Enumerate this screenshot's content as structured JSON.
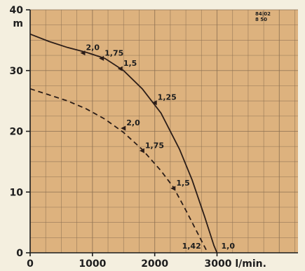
{
  "chart_data": {
    "type": "line",
    "ylabel": "m",
    "x_unit_label": "l/min.",
    "xlim": [
      0,
      4300
    ],
    "ylim": [
      0,
      40
    ],
    "x_ticks": [
      0,
      1000,
      2000,
      3000
    ],
    "x_tick_labels": [
      "0",
      "1000",
      "2000",
      "3000 l/min."
    ],
    "y_ticks": [
      0,
      10,
      20,
      30,
      40
    ],
    "y_tick_labels": [
      "0",
      "10",
      "20",
      "30",
      "40"
    ],
    "grid": true,
    "code": [
      "84|02",
      "8 50"
    ],
    "series": [
      {
        "style": "solid",
        "color": "#2b1d18",
        "x": [
          0,
          300,
          600,
          900,
          1200,
          1500,
          1800,
          2100,
          2400,
          2600,
          2800,
          2950,
          3000
        ],
        "y": [
          36,
          34.8,
          33.8,
          33,
          32,
          30,
          27,
          23,
          17,
          12,
          6,
          1.2,
          0
        ],
        "markers": [
          {
            "x": 850,
            "y": 32.9,
            "label": "2,0"
          },
          {
            "x": 1150,
            "y": 32.0,
            "label": "1,75"
          },
          {
            "x": 1450,
            "y": 30.3,
            "label": "1,5"
          },
          {
            "x": 2000,
            "y": 24.7,
            "label": "1,25"
          },
          {
            "x": 3000,
            "y": 0,
            "label": "1,0"
          }
        ]
      },
      {
        "style": "dashed",
        "color": "#2b1d18",
        "x": [
          0,
          300,
          600,
          900,
          1200,
          1500,
          1800,
          2100,
          2300,
          2500,
          2700,
          2850
        ],
        "y": [
          27,
          26,
          25,
          23.7,
          22,
          19.8,
          17,
          13.5,
          10.8,
          7,
          3,
          0
        ],
        "markers": [
          {
            "x": 1500,
            "y": 20.5,
            "label": "2,0"
          },
          {
            "x": 1800,
            "y": 16.8,
            "label": "1,75"
          },
          {
            "x": 2300,
            "y": 10.6,
            "label": "1,5"
          },
          {
            "x": 2800,
            "y": 0,
            "label": "1,42"
          }
        ]
      }
    ]
  },
  "colors": {
    "paper": "#ddb27e",
    "grid": "#8c7052",
    "axis": "#1d1d1d"
  }
}
